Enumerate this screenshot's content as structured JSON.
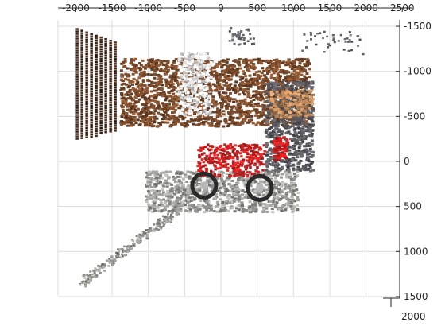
{
  "chart_data": {
    "type": "scatter",
    "description_kind": "3d-point-cloud-projection",
    "x_ticks": [
      -2000,
      -1500,
      -1000,
      -500,
      0,
      500,
      1000,
      1500,
      2000,
      2500
    ],
    "x_tick_labels": [
      "-2000",
      "-1500",
      "-1000",
      "-500",
      "0",
      "500",
      "1000",
      "1500",
      "2000",
      "2500"
    ],
    "y_ticks": [
      -1500,
      -1000,
      -500,
      0,
      500,
      1000,
      1500
    ],
    "y_tick_labels": [
      "-1500",
      "-1000",
      "-500",
      "0",
      "500",
      "1000",
      "1500"
    ],
    "z_tick_label": "2000",
    "xlim": [
      -2250,
      2450
    ],
    "ylim": [
      -1500,
      1500
    ],
    "y_reversed": true,
    "grid": true,
    "colors": {
      "wall": "#7a4a2a",
      "wall_dark": "#3e2415",
      "floor": "#9a9a96",
      "motorcycle": "#d42020",
      "tire": "#2a2a2a",
      "cooler": "#d81a1a",
      "shelf": "#5a5a60",
      "box": "#c08a5a",
      "white_panel": "#e6e6e6",
      "grid": "#dcdcdc",
      "axis": "#262626"
    },
    "regions": [
      {
        "name": "left-wall-stripes",
        "kind": "stripes",
        "x": [
          -2000,
          -1450
        ],
        "y": [
          -1480,
          -250
        ],
        "color": "wall_dark"
      },
      {
        "name": "back-wall",
        "kind": "block",
        "x": [
          -1400,
          1200
        ],
        "y": [
          -1150,
          -400
        ],
        "color": "wall"
      },
      {
        "name": "white-panel",
        "kind": "block",
        "x": [
          -600,
          -150
        ],
        "y": [
          -1220,
          -520
        ],
        "color": "white_panel"
      },
      {
        "name": "right-shelf",
        "kind": "block",
        "x": [
          600,
          1250
        ],
        "y": [
          -900,
          100
        ],
        "color": "shelf"
      },
      {
        "name": "boxes-right",
        "kind": "block",
        "x": [
          650,
          1250
        ],
        "y": [
          -800,
          -500
        ],
        "color": "box"
      },
      {
        "name": "red-cooler",
        "kind": "block",
        "x": [
          700,
          900
        ],
        "y": [
          -280,
          0
        ],
        "color": "cooler"
      },
      {
        "name": "floor",
        "kind": "block",
        "x": [
          -1050,
          1050
        ],
        "y": [
          100,
          550
        ],
        "color": "floor"
      },
      {
        "name": "diagonal-floor-streak",
        "kind": "streak",
        "x": [
          -1950,
          -550
        ],
        "y": [
          1350,
          500
        ],
        "color": "floor"
      },
      {
        "name": "motorcycle-body",
        "kind": "bike",
        "x": [
          -450,
          700
        ],
        "y": [
          -250,
          400
        ],
        "color": "motorcycle"
      },
      {
        "name": "top-right-scatter",
        "kind": "sparse",
        "x": [
          1100,
          1950
        ],
        "y": [
          -1450,
          -1200
        ],
        "color": "shelf"
      },
      {
        "name": "top-center-scatter",
        "kind": "sparse",
        "x": [
          100,
          450
        ],
        "y": [
          -1500,
          -1300
        ],
        "color": "shelf"
      }
    ]
  }
}
